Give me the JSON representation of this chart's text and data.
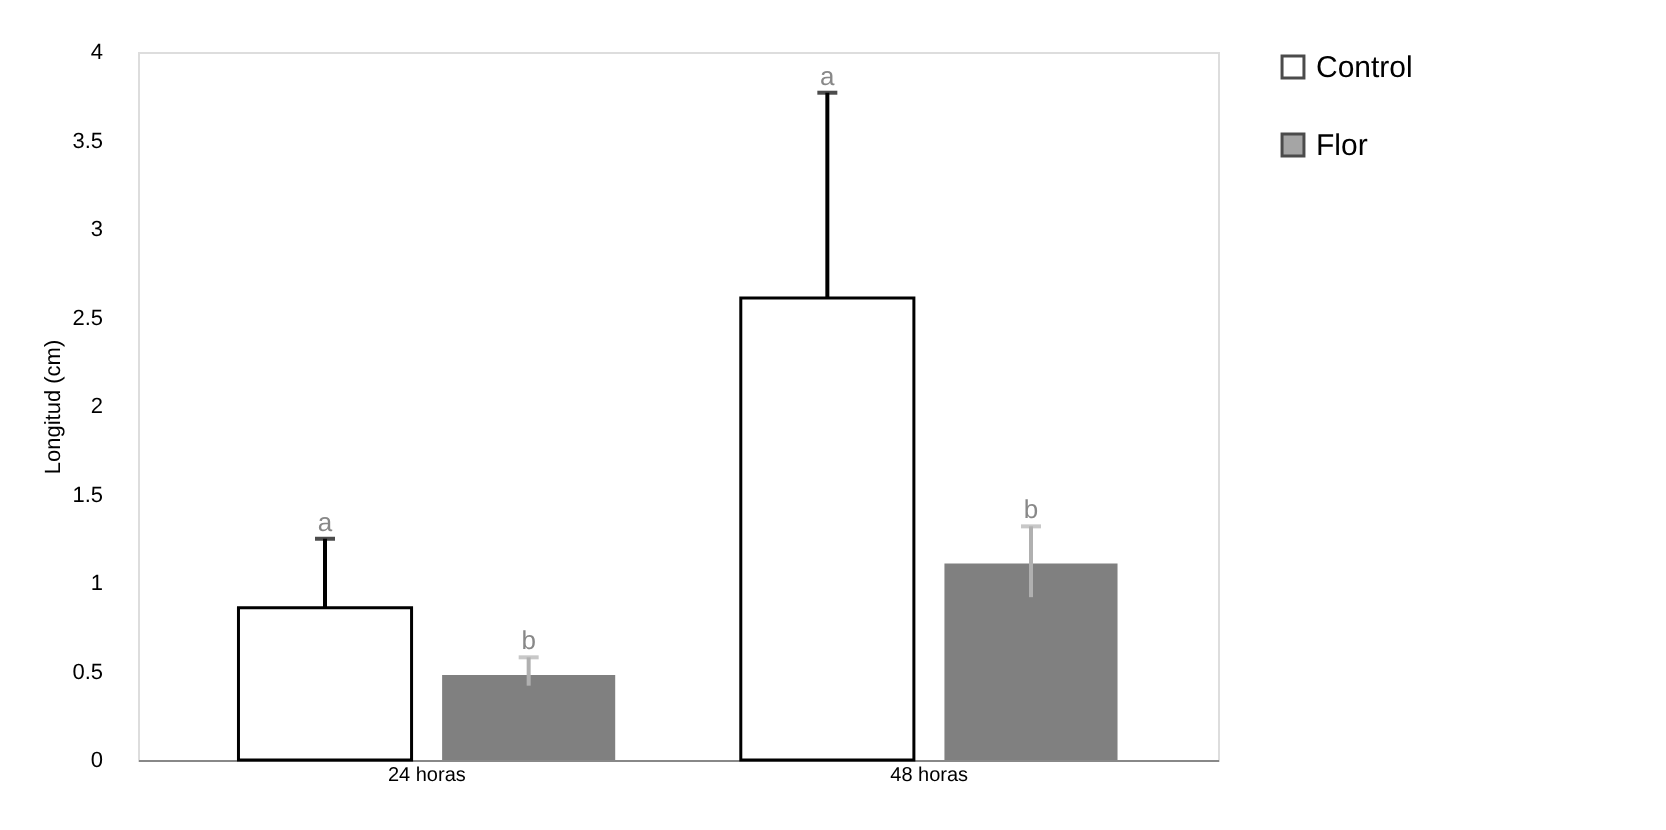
{
  "chart_data": {
    "type": "bar",
    "ylabel": "Longitud (cm)",
    "categories": [
      "24 horas",
      "48 horas"
    ],
    "series": [
      {
        "name": "Control",
        "color": "#ffffff",
        "values": [
          0.86,
          2.61
        ],
        "errors": [
          [
            0.86,
            1.25
          ],
          [
            2.61,
            3.77
          ]
        ]
      },
      {
        "name": "Flor",
        "color": "#808080",
        "values": [
          0.48,
          1.11
        ],
        "errors": [
          [
            0.42,
            0.58
          ],
          [
            0.92,
            1.32
          ]
        ]
      }
    ],
    "ylim": [
      0,
      4
    ],
    "yticks": [
      0,
      0.5,
      1,
      1.5,
      2,
      2.5,
      3,
      3.5,
      4
    ],
    "grid": false,
    "legend": "right",
    "annotations": [
      "a",
      "b",
      "a",
      "b"
    ]
  }
}
